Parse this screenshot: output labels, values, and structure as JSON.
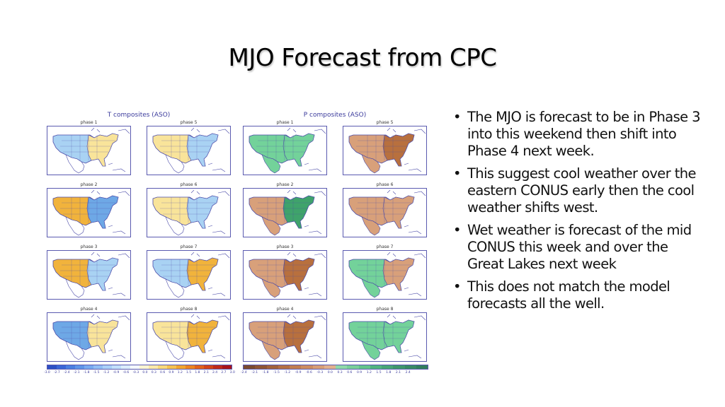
{
  "slide": {
    "title": "MJO Forecast from CPC",
    "bullets": [
      "The MJO is forecast to be in Phase 3 into this weekend then shift into Phase 4 next week.",
      "This suggest cool weather over the eastern CONUS early then the cool weather shifts west.",
      "Wet weather is forecast of the mid CONUS this week and over the Great Lakes next week",
      "This does not match the model forecasts all the well."
    ],
    "bullet_glyph": "•"
  },
  "t_figure": {
    "title": "T composites (ASO)",
    "phases": [
      "phase 1",
      "phase 5",
      "phase 2",
      "phase 6",
      "phase 3",
      "phase 7",
      "phase 4",
      "phase 8"
    ],
    "colorbar_ticks": [
      "-3.0",
      "-2.7",
      "-2.4",
      "-2.1",
      "-1.8",
      "-1.5",
      "-1.2",
      "-0.9",
      "-0.6",
      "-0.3",
      "0.0",
      "0.3",
      "0.6",
      "0.9",
      "1.2",
      "1.5",
      "1.8",
      "2.1",
      "2.4",
      "2.7",
      "3.0"
    ],
    "colorbar_colors": [
      "#2c4fc4",
      "#3a66d6",
      "#4b7fe0",
      "#5f95e8",
      "#78aaf0",
      "#92bef4",
      "#abd0f7",
      "#c3e0fa",
      "#dcedfb",
      "#f4f8fc",
      "#fdf6d2",
      "#fbe9a8",
      "#f8d97a",
      "#f5c24f",
      "#f2a52e",
      "#ec8420",
      "#e1621a",
      "#d24418",
      "#bf2a1a",
      "#a8141a"
    ]
  },
  "p_figure": {
    "title": "P composites (ASO)",
    "phases": [
      "phase 1",
      "phase 5",
      "phase 2",
      "phase 6",
      "phase 3",
      "phase 7",
      "phase 4",
      "phase 8"
    ],
    "colorbar_ticks": [
      "-2.4",
      "-2.1",
      "-1.8",
      "-1.5",
      "-1.2",
      "-0.9",
      "-0.6",
      "-0.3",
      "0.0",
      "0.3",
      "0.6",
      "0.9",
      "1.2",
      "1.5",
      "1.8",
      "2.1",
      "2.4"
    ],
    "colorbar_colors": [
      "#7a4a2e",
      "#8e5533",
      "#a1623a",
      "#b36f43",
      "#c17d50",
      "#cc8c60",
      "#d79d74",
      "#e2b08c",
      "#8fd9a8",
      "#79cf98",
      "#63c48a",
      "#51b47e",
      "#47a574",
      "#3f976b",
      "#388a63",
      "#317e5c"
    ]
  },
  "map_colors": {
    "t_cold": "#a9d2f3",
    "t_cold_deep": "#6ea8e6",
    "t_warm": "#f9e49a",
    "t_warm_deep": "#f1b33c",
    "p_dry": "#d8a07a",
    "p_dry_deep": "#b8703e",
    "p_wet": "#73d29a",
    "p_wet_deep": "#3fa36b",
    "outline": "#4a4aa8"
  },
  "maps": {
    "t": [
      {
        "west": "t_cold",
        "east": "t_warm"
      },
      {
        "west": "t_warm",
        "east": "t_cold"
      },
      {
        "west": "t_warm_deep",
        "east": "t_cold_deep"
      },
      {
        "west": "t_warm",
        "east": "t_cold"
      },
      {
        "west": "t_warm_deep",
        "east": "t_cold"
      },
      {
        "west": "t_cold",
        "east": "t_warm_deep"
      },
      {
        "west": "t_cold_deep",
        "east": "t_warm"
      },
      {
        "west": "t_warm",
        "east": "t_warm_deep"
      }
    ],
    "p": [
      {
        "west": "p_wet",
        "east": "p_wet"
      },
      {
        "west": "p_dry",
        "east": "p_dry_deep"
      },
      {
        "west": "p_dry",
        "east": "p_wet_deep"
      },
      {
        "west": "p_dry",
        "east": "p_dry"
      },
      {
        "west": "p_dry",
        "east": "p_dry_deep"
      },
      {
        "west": "p_wet",
        "east": "p_dry"
      },
      {
        "west": "p_dry",
        "east": "p_dry_deep"
      },
      {
        "west": "p_wet",
        "east": "p_wet"
      }
    ]
  }
}
